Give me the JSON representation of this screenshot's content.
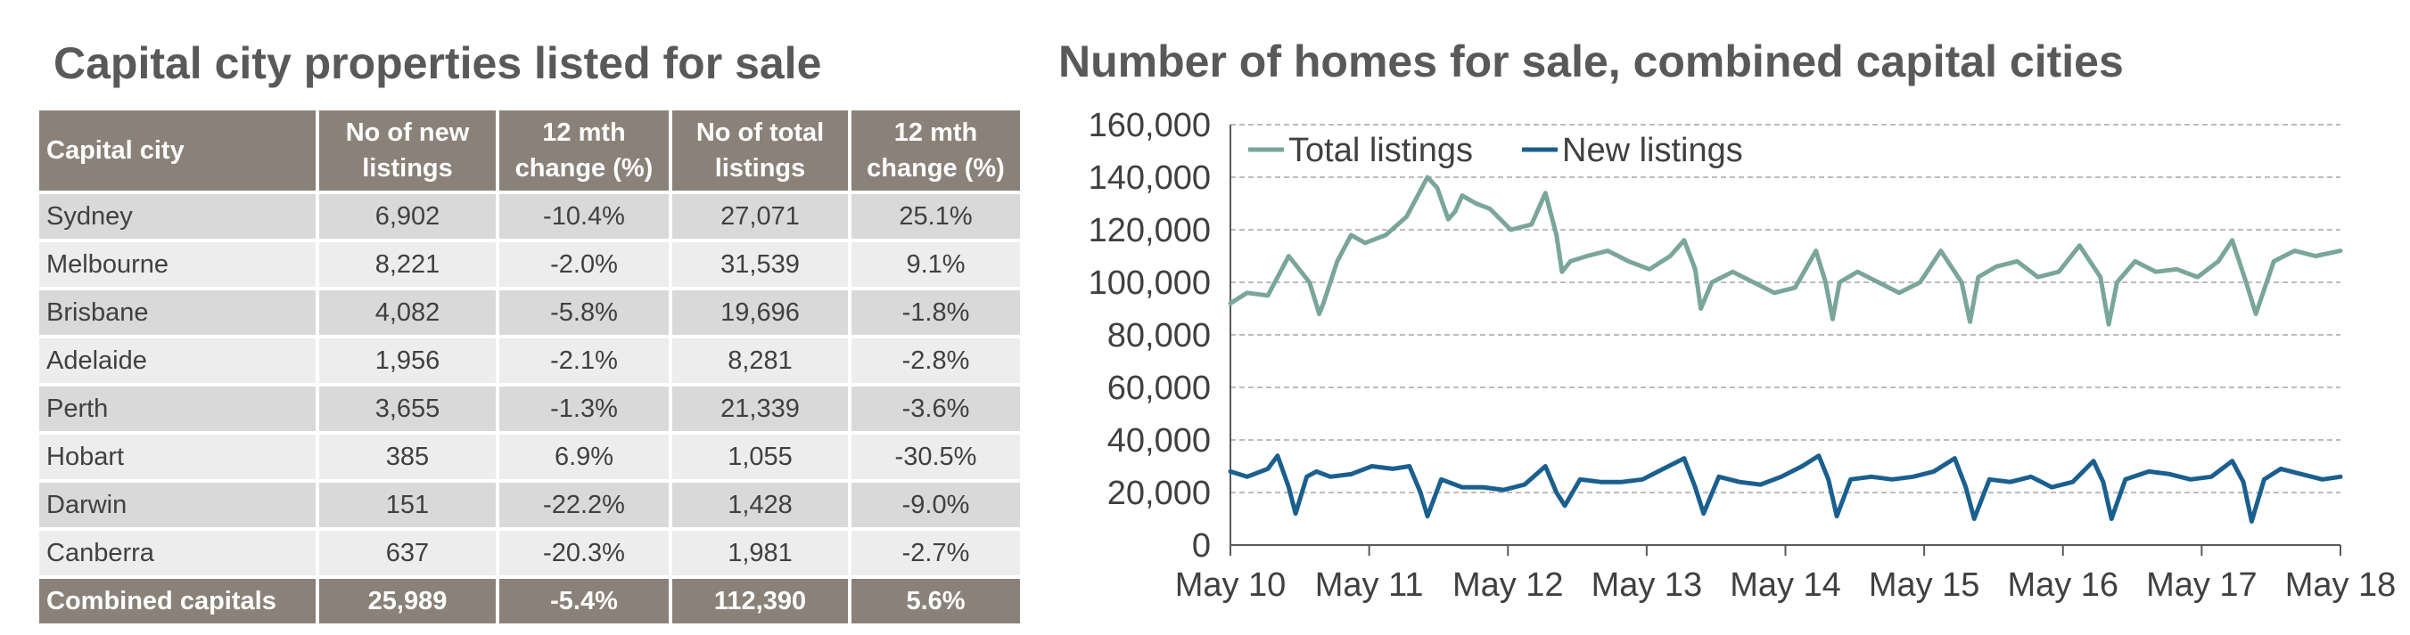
{
  "table": {
    "title": "Capital city properties listed for sale",
    "headers": [
      "Capital city",
      "No of new listings",
      "12 mth change (%)",
      "No of total listings",
      "12 mth change (%)"
    ],
    "rows": [
      [
        "Sydney",
        "6,902",
        "-10.4%",
        "27,071",
        "25.1%"
      ],
      [
        "Melbourne",
        "8,221",
        "-2.0%",
        "31,539",
        "9.1%"
      ],
      [
        "Brisbane",
        "4,082",
        "-5.8%",
        "19,696",
        "-1.8%"
      ],
      [
        "Adelaide",
        "1,956",
        "-2.1%",
        "8,281",
        "-2.8%"
      ],
      [
        "Perth",
        "3,655",
        "-1.3%",
        "21,339",
        "-3.6%"
      ],
      [
        "Hobart",
        "385",
        "6.9%",
        "1,055",
        "-30.5%"
      ],
      [
        "Darwin",
        "151",
        "-22.2%",
        "1,428",
        "-9.0%"
      ],
      [
        "Canberra",
        "637",
        "-20.3%",
        "1,981",
        "-2.7%"
      ]
    ],
    "total_row": [
      "Combined capitals",
      "25,989",
      "-5.4%",
      "112,390",
      "5.6%"
    ]
  },
  "colors": {
    "header_bg": "#8a8178",
    "total_series": "#7aa59b",
    "new_series": "#1a5f8e",
    "text": "#404040",
    "title": "#595959"
  },
  "chart_data": {
    "type": "line",
    "title": "Number of homes for sale, combined capital cities",
    "xlabel": "",
    "ylabel": "",
    "ylim": [
      0,
      160000
    ],
    "yticks": [
      0,
      20000,
      40000,
      60000,
      80000,
      100000,
      120000,
      140000,
      160000
    ],
    "ytick_labels": [
      "0",
      "20,000",
      "40,000",
      "60,000",
      "80,000",
      "100,000",
      "120,000",
      "140,000",
      "160,000"
    ],
    "xlim": [
      2010.33,
      2018.33
    ],
    "xticks": [
      2010.33,
      2011.33,
      2012.33,
      2013.33,
      2014.33,
      2015.33,
      2016.33,
      2017.33,
      2018.33
    ],
    "xtick_labels": [
      "May 10",
      "May 11",
      "May 12",
      "May 13",
      "May 14",
      "May 15",
      "May 16",
      "May 17",
      "May 18"
    ],
    "grid": "horizontal dashed",
    "legend": "top-left",
    "series": [
      {
        "name": "Total listings",
        "x": [
          2010.33,
          2010.45,
          2010.6,
          2010.75,
          2010.9,
          2010.97,
          2011.0,
          2011.1,
          2011.2,
          2011.3,
          2011.45,
          2011.6,
          2011.75,
          2011.82,
          2011.9,
          2011.95,
          2012.0,
          2012.1,
          2012.2,
          2012.35,
          2012.5,
          2012.6,
          2012.68,
          2012.72,
          2012.78,
          2012.9,
          2013.05,
          2013.2,
          2013.35,
          2013.5,
          2013.6,
          2013.68,
          2013.72,
          2013.8,
          2013.95,
          2014.1,
          2014.25,
          2014.4,
          2014.55,
          2014.62,
          2014.67,
          2014.72,
          2014.85,
          2015.0,
          2015.15,
          2015.3,
          2015.45,
          2015.6,
          2015.66,
          2015.72,
          2015.85,
          2016.0,
          2016.15,
          2016.3,
          2016.45,
          2016.6,
          2016.66,
          2016.72,
          2016.85,
          2017.0,
          2017.15,
          2017.3,
          2017.45,
          2017.55,
          2017.65,
          2017.72,
          2017.85,
          2018.0,
          2018.15,
          2018.33
        ],
        "values": [
          92000,
          96000,
          95000,
          110000,
          100000,
          88000,
          92000,
          108000,
          118000,
          115000,
          118000,
          125000,
          140000,
          136000,
          124000,
          127000,
          133000,
          130000,
          128000,
          120000,
          122000,
          134000,
          118000,
          104000,
          108000,
          110000,
          112000,
          108000,
          105000,
          110000,
          116000,
          105000,
          90000,
          100000,
          104000,
          100000,
          96000,
          98000,
          112000,
          100000,
          86000,
          100000,
          104000,
          100000,
          96000,
          100000,
          112000,
          100000,
          85000,
          102000,
          106000,
          108000,
          102000,
          104000,
          114000,
          102000,
          84000,
          100000,
          108000,
          104000,
          105000,
          102000,
          108000,
          116000,
          100000,
          88000,
          108000,
          112000,
          110000,
          112000
        ]
      },
      {
        "name": "New listings",
        "x": [
          2010.33,
          2010.45,
          2010.6,
          2010.67,
          2010.75,
          2010.8,
          2010.88,
          2010.95,
          2011.05,
          2011.2,
          2011.35,
          2011.5,
          2011.62,
          2011.7,
          2011.75,
          2011.85,
          2012.0,
          2012.15,
          2012.3,
          2012.45,
          2012.6,
          2012.68,
          2012.74,
          2012.85,
          2013.0,
          2013.15,
          2013.3,
          2013.45,
          2013.6,
          2013.68,
          2013.74,
          2013.85,
          2014.0,
          2014.15,
          2014.3,
          2014.45,
          2014.57,
          2014.64,
          2014.7,
          2014.8,
          2014.95,
          2015.1,
          2015.25,
          2015.4,
          2015.55,
          2015.63,
          2015.69,
          2015.8,
          2015.95,
          2016.1,
          2016.25,
          2016.4,
          2016.55,
          2016.62,
          2016.68,
          2016.78,
          2016.95,
          2017.1,
          2017.25,
          2017.4,
          2017.55,
          2017.63,
          2017.69,
          2017.78,
          2017.9,
          2018.05,
          2018.2,
          2018.33
        ],
        "values": [
          28000,
          26000,
          29000,
          34000,
          22000,
          12000,
          26000,
          28000,
          26000,
          27000,
          30000,
          29000,
          30000,
          20000,
          11000,
          25000,
          22000,
          22000,
          21000,
          23000,
          30000,
          20000,
          15000,
          25000,
          24000,
          24000,
          25000,
          29000,
          33000,
          22000,
          12000,
          26000,
          24000,
          23000,
          26000,
          30000,
          34000,
          25000,
          11000,
          25000,
          26000,
          25000,
          26000,
          28000,
          33000,
          22000,
          10000,
          25000,
          24000,
          26000,
          22000,
          24000,
          32000,
          24000,
          10000,
          25000,
          28000,
          27000,
          25000,
          26000,
          32000,
          24000,
          9000,
          25000,
          29000,
          27000,
          25000,
          26000
        ]
      }
    ]
  }
}
